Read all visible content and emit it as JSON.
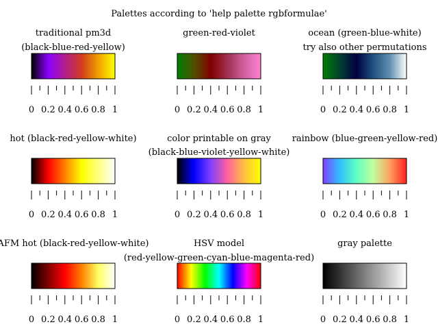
{
  "title": "Palettes according to 'help palette rgbformulae'",
  "chart_data": [
    {
      "type": "heatmap",
      "title": [
        "traditional pm3d",
        "(black-blue-red-yellow)"
      ],
      "colormap": [
        "#000000",
        "#8a00ff",
        "#b41e8c",
        "#d23c1e",
        "#f0a000",
        "#ffff00"
      ],
      "ticks": [
        "0",
        "0.2",
        "0.4",
        "0.6",
        "0.8",
        "1"
      ],
      "range": [
        0,
        1
      ]
    },
    {
      "type": "heatmap",
      "title": [
        "green-red-violet"
      ],
      "colormap": [
        "#008000",
        "#505000",
        "#800000",
        "#a03050",
        "#d060a0",
        "#ff80d0"
      ],
      "ticks": [
        "0",
        "0.2",
        "0.4",
        "0.6",
        "0.8",
        "1"
      ],
      "range": [
        0,
        1
      ]
    },
    {
      "type": "heatmap",
      "title": [
        "ocean (green-blue-white)",
        "try also other permutations"
      ],
      "colormap": [
        "#008000",
        "#004030",
        "#000040",
        "#205080",
        "#6090b0",
        "#ffffff"
      ],
      "ticks": [
        "0",
        "0.2",
        "0.4",
        "0.6",
        "0.8",
        "1"
      ],
      "range": [
        0,
        1
      ]
    },
    {
      "type": "heatmap",
      "title": [
        "hot (black-red-yellow-white)"
      ],
      "colormap": [
        "#000000",
        "#ff0000",
        "#ff8000",
        "#ffff00",
        "#ffff80",
        "#ffffff"
      ],
      "ticks": [
        "0",
        "0.2",
        "0.4",
        "0.6",
        "0.8",
        "1"
      ],
      "range": [
        0,
        1
      ]
    },
    {
      "type": "heatmap",
      "title": [
        "color printable on gray",
        "(black-blue-violet-yellow-white)"
      ],
      "colormap": [
        "#000000",
        "#0000ff",
        "#8040ff",
        "#ff60a0",
        "#ffc040",
        "#ffff00"
      ],
      "ticks": [
        "0",
        "0.2",
        "0.4",
        "0.6",
        "0.8",
        "1"
      ],
      "range": [
        0,
        1
      ]
    },
    {
      "type": "heatmap",
      "title": [
        "rainbow (blue-green-yellow-red)"
      ],
      "colormap": [
        "#8040ff",
        "#30c0ff",
        "#60ffc0",
        "#c0ffa0",
        "#ffa060",
        "#ff2020"
      ],
      "ticks": [
        "0",
        "0.2",
        "0.4",
        "0.6",
        "0.8",
        "1"
      ],
      "range": [
        0,
        1
      ]
    },
    {
      "type": "heatmap",
      "title": [
        "AFM hot (black-red-yellow-white)"
      ],
      "colormap": [
        "#000000",
        "#800000",
        "#ff0000",
        "#ff8000",
        "#ffff60",
        "#ffffff"
      ],
      "ticks": [
        "0",
        "0.2",
        "0.4",
        "0.6",
        "0.8",
        "1"
      ],
      "range": [
        0,
        1
      ]
    },
    {
      "type": "heatmap",
      "title": [
        "HSV model",
        "(red-yellow-green-cyan-blue-magenta-red)"
      ],
      "colormap": [
        "#ff0000",
        "#ffff00",
        "#00ff00",
        "#00ffff",
        "#0000ff",
        "#ff00ff",
        "#ff0000"
      ],
      "ticks": [
        "0",
        "0.2",
        "0.4",
        "0.6",
        "0.8",
        "1"
      ],
      "range": [
        0,
        1
      ]
    },
    {
      "type": "heatmap",
      "title": [
        "gray palette"
      ],
      "colormap": [
        "#000000",
        "#ffffff"
      ],
      "ticks": [
        "0",
        "0.2",
        "0.4",
        "0.6",
        "0.8",
        "1"
      ],
      "range": [
        0,
        1
      ]
    }
  ]
}
